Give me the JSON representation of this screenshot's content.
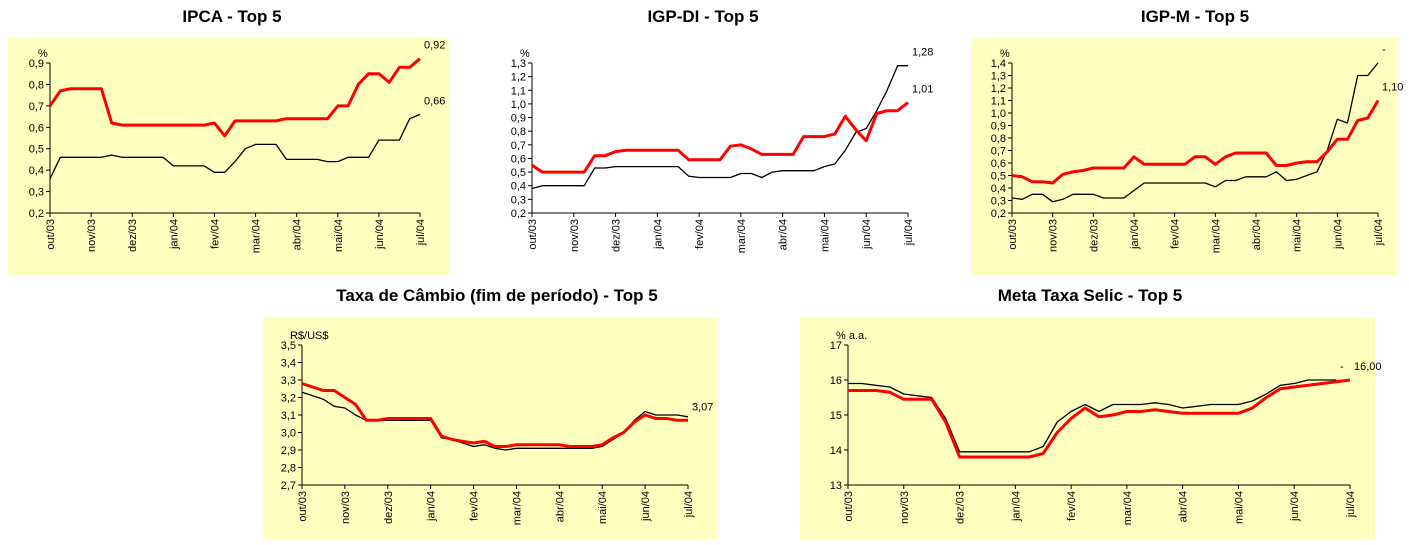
{
  "chart_data": [
    {
      "type": "line",
      "title": "IPCA - Top 5",
      "y_label": "%",
      "background": "#ffffc0",
      "categories": [
        "out/03",
        null,
        null,
        null,
        "nov/03",
        null,
        null,
        null,
        "dez/03",
        null,
        null,
        null,
        "jan/04",
        null,
        null,
        null,
        "fev/04",
        null,
        null,
        null,
        "mar/04",
        null,
        null,
        null,
        "abr/04",
        null,
        null,
        null,
        "mai/04",
        null,
        null,
        null,
        "jun/04",
        null,
        null,
        null,
        "jul/04"
      ],
      "ylim": [
        0.2,
        0.9
      ],
      "yticks": [
        {
          "value": 0.2,
          "label": "0,2"
        },
        {
          "value": 0.3,
          "label": "0,3"
        },
        {
          "value": 0.4,
          "label": "0,4"
        },
        {
          "value": 0.5,
          "label": "0,5"
        },
        {
          "value": 0.6,
          "label": "0,6"
        },
        {
          "value": 0.7,
          "label": "0,7"
        },
        {
          "value": 0.8,
          "label": "0,8"
        },
        {
          "value": 0.9,
          "label": "0,9"
        }
      ],
      "series": [
        {
          "color": "#000000",
          "end_label": "0,66",
          "values": [
            0.36,
            0.46,
            0.46,
            0.46,
            0.46,
            0.46,
            0.47,
            0.46,
            0.46,
            0.46,
            0.46,
            0.46,
            0.42,
            0.42,
            0.42,
            0.42,
            0.39,
            0.39,
            0.44,
            0.5,
            0.52,
            0.52,
            0.52,
            0.45,
            0.45,
            0.45,
            0.45,
            0.44,
            0.44,
            0.46,
            0.46,
            0.46,
            0.54,
            0.54,
            0.54,
            0.64,
            0.66
          ]
        },
        {
          "color": "#ff0000",
          "end_label": "0,92",
          "values": [
            0.7,
            0.77,
            0.78,
            0.78,
            0.78,
            0.78,
            0.62,
            0.61,
            0.61,
            0.61,
            0.61,
            0.61,
            0.61,
            0.61,
            0.61,
            0.61,
            0.62,
            0.56,
            0.63,
            0.63,
            0.63,
            0.63,
            0.63,
            0.64,
            0.64,
            0.64,
            0.64,
            0.64,
            0.7,
            0.7,
            0.8,
            0.85,
            0.85,
            0.81,
            0.88,
            0.88,
            0.92
          ]
        }
      ]
    },
    {
      "type": "line",
      "title": "IGP-DI - Top 5",
      "y_label": "%",
      "categories": [
        "out/03",
        null,
        null,
        null,
        "nov/03",
        null,
        null,
        null,
        "dez/03",
        null,
        null,
        null,
        "jan/04",
        null,
        null,
        null,
        "fev/04",
        null,
        null,
        null,
        "mar/04",
        null,
        null,
        null,
        "abr/04",
        null,
        null,
        null,
        "mai/04",
        null,
        null,
        null,
        "jun/04",
        null,
        null,
        null,
        "jul/04"
      ],
      "ylim": [
        0.2,
        1.3
      ],
      "yticks": [
        {
          "value": 0.2,
          "label": "0,2"
        },
        {
          "value": 0.3,
          "label": "0,3"
        },
        {
          "value": 0.4,
          "label": "0,4"
        },
        {
          "value": 0.5,
          "label": "0,5"
        },
        {
          "value": 0.6,
          "label": "0,6"
        },
        {
          "value": 0.7,
          "label": "0,7"
        },
        {
          "value": 0.8,
          "label": "0,8"
        },
        {
          "value": 0.9,
          "label": "0,9"
        },
        {
          "value": 1.0,
          "label": "1,0"
        },
        {
          "value": 1.1,
          "label": "1,1"
        },
        {
          "value": 1.2,
          "label": "1,2"
        },
        {
          "value": 1.3,
          "label": "1,3"
        }
      ],
      "series": [
        {
          "color": "#000000",
          "end_label": "1,28",
          "values": [
            0.38,
            0.4,
            0.4,
            0.4,
            0.4,
            0.4,
            0.53,
            0.53,
            0.54,
            0.54,
            0.54,
            0.54,
            0.54,
            0.54,
            0.54,
            0.47,
            0.46,
            0.46,
            0.46,
            0.46,
            0.49,
            0.49,
            0.46,
            0.5,
            0.51,
            0.51,
            0.51,
            0.51,
            0.54,
            0.56,
            0.66,
            0.79,
            0.82,
            0.95,
            1.1,
            1.28,
            1.28
          ]
        },
        {
          "color": "#ff0000",
          "end_label": "1,01",
          "values": [
            0.55,
            0.5,
            0.5,
            0.5,
            0.5,
            0.5,
            0.62,
            0.62,
            0.65,
            0.66,
            0.66,
            0.66,
            0.66,
            0.66,
            0.66,
            0.59,
            0.59,
            0.59,
            0.59,
            0.69,
            0.7,
            0.67,
            0.63,
            0.63,
            0.63,
            0.63,
            0.76,
            0.76,
            0.76,
            0.78,
            0.91,
            0.81,
            0.73,
            0.93,
            0.95,
            0.95,
            1.01
          ]
        }
      ]
    },
    {
      "type": "line",
      "title": "IGP-M - Top 5",
      "y_label": "%",
      "background": "#ffffc0",
      "categories": [
        "out/03",
        null,
        null,
        null,
        "nov/03",
        null,
        null,
        null,
        "dez/03",
        null,
        null,
        null,
        "jan/04",
        null,
        null,
        null,
        "fev/04",
        null,
        null,
        null,
        "mar/04",
        null,
        null,
        null,
        "abr/04",
        null,
        null,
        null,
        "mai/04",
        null,
        null,
        null,
        "jun/04",
        null,
        null,
        null,
        "jul/04"
      ],
      "ylim": [
        0.2,
        1.4
      ],
      "yticks": [
        {
          "value": 0.2,
          "label": "0,2"
        },
        {
          "value": 0.3,
          "label": "0,3"
        },
        {
          "value": 0.4,
          "label": "0,4"
        },
        {
          "value": 0.5,
          "label": "0,5"
        },
        {
          "value": 0.6,
          "label": "0,6"
        },
        {
          "value": 0.7,
          "label": "0,7"
        },
        {
          "value": 0.8,
          "label": "0,8"
        },
        {
          "value": 0.9,
          "label": "0,9"
        },
        {
          "value": 1.0,
          "label": "1,0"
        },
        {
          "value": 1.1,
          "label": "1,1"
        },
        {
          "value": 1.2,
          "label": "1,2"
        },
        {
          "value": 1.3,
          "label": "1,3"
        },
        {
          "value": 1.4,
          "label": "1,4"
        }
      ],
      "series": [
        {
          "color": "#000000",
          "end_label": "-",
          "values": [
            0.32,
            0.31,
            0.35,
            0.35,
            0.29,
            0.31,
            0.35,
            0.35,
            0.35,
            0.32,
            0.32,
            0.32,
            0.38,
            0.44,
            0.44,
            0.44,
            0.44,
            0.44,
            0.44,
            0.44,
            0.41,
            0.46,
            0.46,
            0.49,
            0.49,
            0.49,
            0.53,
            0.46,
            0.47,
            0.5,
            0.53,
            0.7,
            0.95,
            0.92,
            1.3,
            1.3,
            1.4
          ]
        },
        {
          "color": "#ff0000",
          "end_label": "1,10",
          "values": [
            0.5,
            0.49,
            0.45,
            0.45,
            0.44,
            0.51,
            0.53,
            0.54,
            0.56,
            0.56,
            0.56,
            0.56,
            0.65,
            0.59,
            0.59,
            0.59,
            0.59,
            0.59,
            0.65,
            0.65,
            0.59,
            0.65,
            0.68,
            0.68,
            0.68,
            0.68,
            0.58,
            0.58,
            0.6,
            0.61,
            0.61,
            0.69,
            0.79,
            0.79,
            0.94,
            0.96,
            1.1
          ]
        }
      ]
    },
    {
      "type": "line",
      "title": "Taxa de Câmbio (fim de período) - Top 5",
      "y_label": "R$/US$",
      "background": "#ffffc0",
      "categories": [
        "out/03",
        null,
        null,
        null,
        "nov/03",
        null,
        null,
        null,
        "dez/03",
        null,
        null,
        null,
        "jan/04",
        null,
        null,
        null,
        "fev/04",
        null,
        null,
        null,
        "mar/04",
        null,
        null,
        null,
        "abr/04",
        null,
        null,
        null,
        "mai/04",
        null,
        null,
        null,
        "jun/04",
        null,
        null,
        null,
        "jul/04"
      ],
      "ylim": [
        2.7,
        3.5
      ],
      "yticks": [
        {
          "value": 2.7,
          "label": "2,7"
        },
        {
          "value": 2.8,
          "label": "2,8"
        },
        {
          "value": 2.9,
          "label": "2,9"
        },
        {
          "value": 3.0,
          "label": "3,0"
        },
        {
          "value": 3.1,
          "label": "3,1"
        },
        {
          "value": 3.2,
          "label": "3,2"
        },
        {
          "value": 3.3,
          "label": "3,3"
        },
        {
          "value": 3.4,
          "label": "3,4"
        },
        {
          "value": 3.5,
          "label": "3,5"
        }
      ],
      "series": [
        {
          "color": "#000000",
          "end_label": "-",
          "values": [
            3.23,
            3.21,
            3.19,
            3.15,
            3.14,
            3.1,
            3.07,
            3.07,
            3.07,
            3.07,
            3.07,
            3.07,
            3.07,
            2.97,
            2.96,
            2.94,
            2.92,
            2.93,
            2.91,
            2.9,
            2.91,
            2.91,
            2.91,
            2.91,
            2.91,
            2.91,
            2.91,
            2.91,
            2.92,
            2.96,
            3.0,
            3.07,
            3.12,
            3.1,
            3.1,
            3.1,
            3.09
          ]
        },
        {
          "color": "#ff0000",
          "end_label": "3,07",
          "values": [
            3.28,
            3.26,
            3.24,
            3.24,
            3.2,
            3.16,
            3.07,
            3.07,
            3.08,
            3.08,
            3.08,
            3.08,
            3.08,
            2.98,
            2.96,
            2.95,
            2.94,
            2.95,
            2.92,
            2.92,
            2.93,
            2.93,
            2.93,
            2.93,
            2.93,
            2.92,
            2.92,
            2.92,
            2.93,
            2.97,
            3.0,
            3.06,
            3.1,
            3.08,
            3.08,
            3.07,
            3.07
          ]
        }
      ]
    },
    {
      "type": "line",
      "title": "Meta Taxa Selic - Top 5",
      "y_label": "% a.a.",
      "background": "#ffffc0",
      "categories": [
        "out/03",
        null,
        null,
        null,
        "nov/03",
        null,
        null,
        null,
        "dez/03",
        null,
        null,
        null,
        "jan/04",
        null,
        null,
        null,
        "fev/04",
        null,
        null,
        null,
        "mar/04",
        null,
        null,
        null,
        "abr/04",
        null,
        null,
        null,
        "mai/04",
        null,
        null,
        null,
        "jun/04",
        null,
        null,
        null,
        "jul/04"
      ],
      "ylim": [
        13,
        17
      ],
      "yticks": [
        13,
        14,
        15,
        16,
        17
      ],
      "series": [
        {
          "color": "#000000",
          "end_label": "-",
          "values": [
            15.9,
            15.9,
            15.85,
            15.8,
            15.6,
            15.55,
            15.5,
            14.9,
            13.95,
            13.95,
            13.95,
            13.95,
            13.95,
            13.95,
            14.1,
            14.8,
            15.1,
            15.3,
            15.1,
            15.3,
            15.3,
            15.3,
            15.35,
            15.3,
            15.2,
            15.25,
            15.3,
            15.3,
            15.3,
            15.4,
            15.6,
            15.85,
            15.9,
            16.0,
            16.0,
            16.0,
            null
          ]
        },
        {
          "color": "#ff0000",
          "end_label": "16,00",
          "values": [
            15.7,
            15.7,
            15.7,
            15.65,
            15.45,
            15.45,
            15.45,
            14.8,
            13.8,
            13.8,
            13.8,
            13.8,
            13.8,
            13.8,
            13.9,
            14.5,
            14.9,
            15.2,
            14.95,
            15.0,
            15.1,
            15.1,
            15.15,
            15.1,
            15.05,
            15.05,
            15.05,
            15.05,
            15.05,
            15.2,
            15.5,
            15.75,
            15.8,
            15.85,
            15.9,
            15.95,
            16.0
          ]
        }
      ]
    }
  ]
}
